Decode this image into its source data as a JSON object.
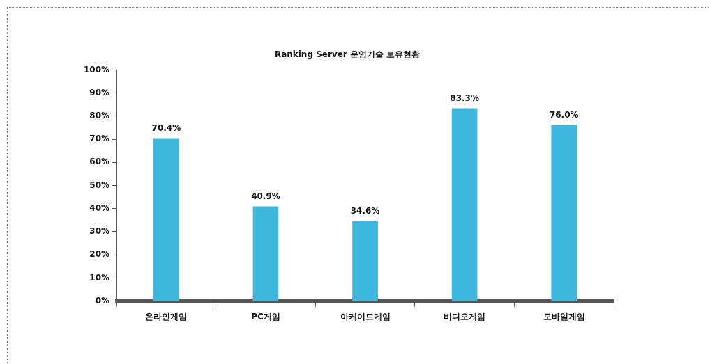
{
  "chart_data": {
    "type": "bar",
    "title": "Ranking Server 운영기술 보유현황",
    "categories": [
      "온라인게임",
      "PC게임",
      "아케이드게임",
      "비디오게임",
      "모바일게임"
    ],
    "values": [
      70.4,
      40.9,
      34.6,
      83.3,
      76.0
    ],
    "value_labels": [
      "70.4%",
      "40.9%",
      "34.6%",
      "83.3%",
      "76.0%"
    ],
    "color": "#3cb6dc",
    "ylim": [
      0,
      100
    ],
    "yticks": [
      {
        "value": 0,
        "label": "0%"
      },
      {
        "value": 10,
        "label": "10%"
      },
      {
        "value": 20,
        "label": "20%"
      },
      {
        "value": 30,
        "label": "30%"
      },
      {
        "value": 40,
        "label": "40%"
      },
      {
        "value": 50,
        "label": "50%"
      },
      {
        "value": 60,
        "label": "60%"
      },
      {
        "value": 70,
        "label": "70%"
      },
      {
        "value": 80,
        "label": "80%"
      },
      {
        "value": 90,
        "label": "90%"
      },
      {
        "value": 100,
        "label": "100%"
      }
    ],
    "grid": false,
    "legend": false
  }
}
